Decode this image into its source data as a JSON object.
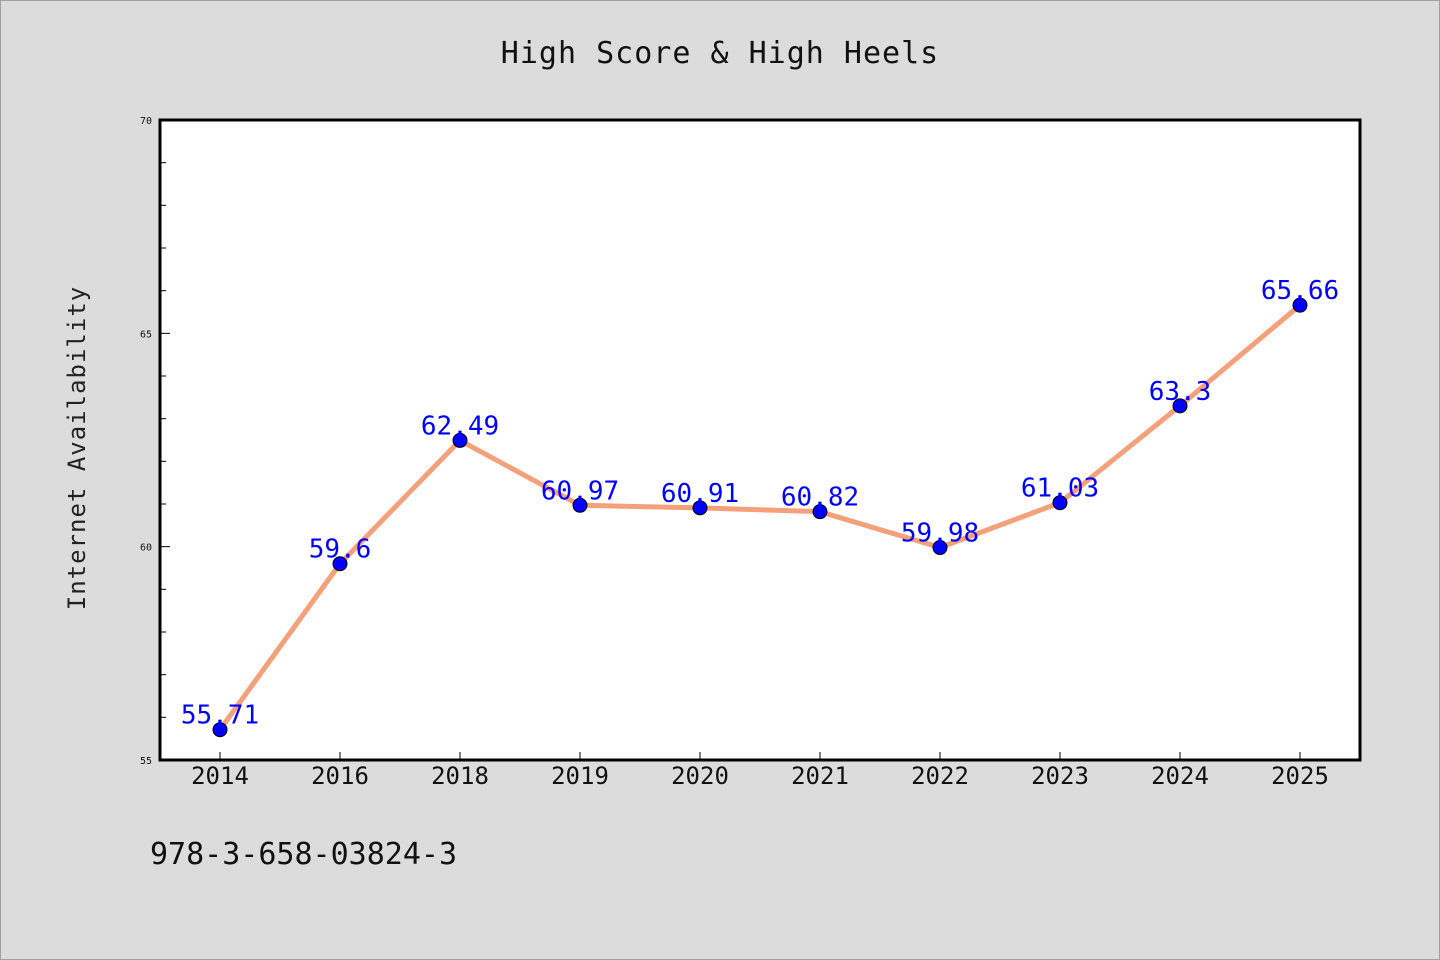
{
  "chart_data": {
    "type": "line",
    "title": "High Score & High Heels",
    "xlabel": "",
    "ylabel": "Internet Availability",
    "categories": [
      "2014",
      "2016",
      "2018",
      "2019",
      "2020",
      "2021",
      "2022",
      "2023",
      "2024",
      "2025"
    ],
    "series": [
      {
        "values": [
          55.71,
          59.6,
          62.49,
          60.97,
          60.91,
          60.82,
          59.98,
          61.03,
          63.3,
          65.66
        ],
        "data_labels": [
          "55.71",
          "59.6",
          "62.49",
          "60.97",
          "60.91",
          "60.82",
          "59.98",
          "61.03",
          "63.3",
          "65.66"
        ],
        "line_color": "#f4a07a",
        "marker_color": "#0000ff",
        "label_color": "#0000ff"
      }
    ],
    "ylim": [
      55,
      70
    ],
    "yticks": [
      55,
      60,
      65,
      70
    ],
    "yticks_minor_step": 1,
    "grid": false,
    "legend": "none"
  },
  "footer": {
    "isbn": "978-3-658-03824-3"
  },
  "colors": {
    "figure_background": "#dcdcdc",
    "plot_background": "#ffffff",
    "axes_border": "#000000"
  }
}
